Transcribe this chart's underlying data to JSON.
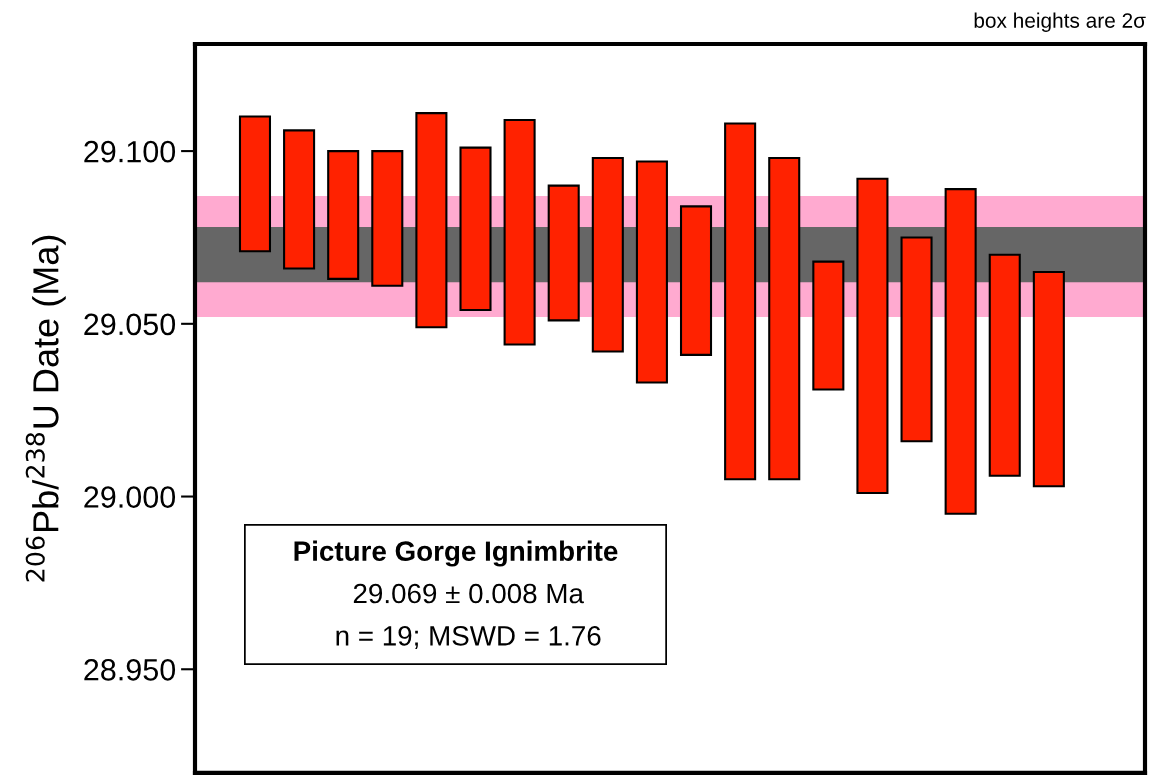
{
  "chart_data": {
    "type": "bar",
    "ylabel": "$^{206}$Pb/$^{238}$U Date (Ma)",
    "categories": [
      null,
      null,
      null,
      null,
      null,
      null,
      null,
      null,
      null,
      null,
      null,
      null,
      null,
      null,
      null,
      null,
      null,
      null,
      null
    ],
    "base": [
      29.071,
      29.066,
      29.063,
      29.061,
      29.049,
      29.054,
      29.044,
      29.051,
      29.042,
      29.033,
      29.041,
      29.005,
      29.005,
      29.031,
      29.001,
      29.016,
      28.995,
      29.006,
      29.003
    ],
    "values": [
      0.039,
      0.04,
      0.037,
      0.039,
      0.062,
      0.047,
      0.065,
      0.039,
      0.056,
      0.064,
      0.043,
      0.103,
      0.093,
      0.037,
      0.091,
      0.059,
      0.094,
      0.064,
      0.062
    ],
    "color": "#ff2200",
    "ylim": [
      28.92,
      29.131
    ],
    "yticks": [
      {
        "value": 28.95,
        "label": "28.950"
      },
      {
        "value": 29.0,
        "label": "29.000"
      },
      {
        "value": 29.05,
        "label": "29.050"
      },
      {
        "value": 29.1,
        "label": "29.100"
      }
    ],
    "tick_labels": "y",
    "grid": false,
    "legend": false,
    "bands": [
      {
        "axis": "y",
        "from": 29.052,
        "to": 29.087,
        "color": "#ffaad0"
      },
      {
        "axis": "y",
        "from": 29.062,
        "to": 29.078,
        "color": "#666666"
      }
    ],
    "annotations": [
      "box heights are 2σ",
      "Picture Gorge Ignimbrite",
      "29.069 ± 0.008 Ma",
      "n = 19; MSWD = 1.76"
    ]
  }
}
